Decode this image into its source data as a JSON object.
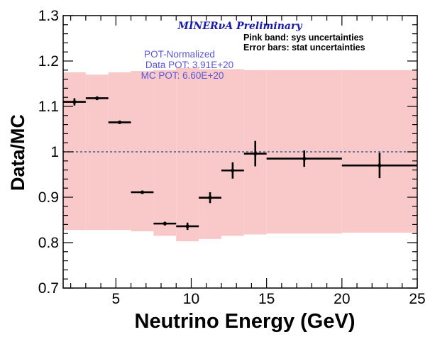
{
  "chart_data": {
    "type": "scatter",
    "title": "MINERνA Preliminary",
    "xlabel": "Neutrino Energy (GeV)",
    "ylabel": "Data/MC",
    "xlim": [
      1.5,
      25
    ],
    "ylim": [
      0.7,
      1.3
    ],
    "x_ticks": [
      5,
      10,
      15,
      20,
      25
    ],
    "x_tick_labels": [
      "5",
      "10",
      "15",
      "20",
      "25"
    ],
    "y_ticks": [
      0.7,
      0.8,
      0.9,
      1.0,
      1.1,
      1.2,
      1.3
    ],
    "y_tick_labels": [
      "0.7",
      "0.8",
      "0.9",
      "1",
      "1.1",
      "1.2",
      "1.3"
    ],
    "reference_line": 1.0,
    "annotations": {
      "band_note": "Pink band: sys uncertainties",
      "error_note": "Error bars: stat uncertainties",
      "pot_header": "POT-Normalized",
      "data_pot": "Data POT: 3.91E+20",
      "mc_pot": "MC POT: 6.60E+20"
    },
    "points": [
      {
        "x": 2.25,
        "x_low": 1.5,
        "x_high": 3.0,
        "y": 1.11,
        "y_err": 0.008
      },
      {
        "x": 3.75,
        "x_low": 3.0,
        "x_high": 4.5,
        "y": 1.118,
        "y_err": 0.004
      },
      {
        "x": 5.25,
        "x_low": 4.5,
        "x_high": 6.0,
        "y": 1.065,
        "y_err": 0.003
      },
      {
        "x": 6.75,
        "x_low": 6.0,
        "x_high": 7.5,
        "y": 0.911,
        "y_err": 0.003
      },
      {
        "x": 8.25,
        "x_low": 7.5,
        "x_high": 9.0,
        "y": 0.842,
        "y_err": 0.004
      },
      {
        "x": 9.75,
        "x_low": 9.0,
        "x_high": 10.5,
        "y": 0.836,
        "y_err": 0.008
      },
      {
        "x": 11.25,
        "x_low": 10.5,
        "x_high": 12.0,
        "y": 0.899,
        "y_err": 0.012
      },
      {
        "x": 12.75,
        "x_low": 12.0,
        "x_high": 13.5,
        "y": 0.959,
        "y_err": 0.018
      },
      {
        "x": 14.25,
        "x_low": 13.5,
        "x_high": 15.0,
        "y": 0.996,
        "y_err": 0.028
      },
      {
        "x": 17.5,
        "x_low": 15.0,
        "x_high": 20.0,
        "y": 0.985,
        "y_err": 0.018
      },
      {
        "x": 22.5,
        "x_low": 20.0,
        "x_high": 25.0,
        "y": 0.97,
        "y_err": 0.028
      }
    ],
    "sys_band": {
      "color": "#f9c9c9",
      "bins": [
        {
          "x_low": 1.5,
          "x_high": 3.0,
          "low": 0.828,
          "high": 1.175
        },
        {
          "x_low": 3.0,
          "x_high": 4.5,
          "low": 0.828,
          "high": 1.17
        },
        {
          "x_low": 4.5,
          "x_high": 6.0,
          "low": 0.828,
          "high": 1.175
        },
        {
          "x_low": 6.0,
          "x_high": 7.5,
          "low": 0.825,
          "high": 1.178
        },
        {
          "x_low": 7.5,
          "x_high": 9.0,
          "low": 0.815,
          "high": 1.18
        },
        {
          "x_low": 9.0,
          "x_high": 10.5,
          "low": 0.803,
          "high": 1.185
        },
        {
          "x_low": 10.5,
          "x_high": 12.0,
          "low": 0.808,
          "high": 1.182
        },
        {
          "x_low": 12.0,
          "x_high": 13.5,
          "low": 0.815,
          "high": 1.182
        },
        {
          "x_low": 13.5,
          "x_high": 15.0,
          "low": 0.818,
          "high": 1.18
        },
        {
          "x_low": 15.0,
          "x_high": 20.0,
          "low": 0.82,
          "high": 1.18
        },
        {
          "x_low": 20.0,
          "x_high": 25.0,
          "low": 0.822,
          "high": 1.18
        }
      ]
    },
    "colors": {
      "points": "#000000",
      "reference_line": "#4a5a8a",
      "title": "#1a1aa8",
      "pot_text": "#5a55d6"
    }
  }
}
